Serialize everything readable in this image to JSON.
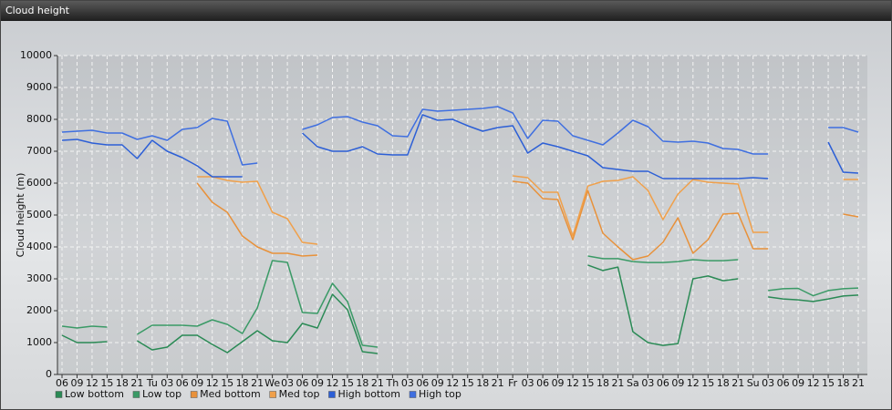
{
  "chart_data": {
    "type": "line",
    "title": "Cloud height",
    "y_label": "Cloud height (m)",
    "categories": [
      "06",
      "09",
      "12",
      "15",
      "18",
      "21",
      "Tu",
      "03",
      "06",
      "09",
      "12",
      "15",
      "18",
      "21",
      "We",
      "03",
      "06",
      "09",
      "12",
      "15",
      "18",
      "21",
      "Th",
      "03",
      "06",
      "09",
      "12",
      "15",
      "18",
      "21",
      "Fr",
      "03",
      "06",
      "09",
      "12",
      "15",
      "18",
      "21",
      "Sa",
      "03",
      "06",
      "09",
      "12",
      "15",
      "18",
      "21",
      "Su",
      "03",
      "06",
      "09",
      "12",
      "15",
      "18",
      "21"
    ],
    "ylim": [
      0,
      10000
    ],
    "yticks": [
      0,
      1000,
      2000,
      3000,
      4000,
      5000,
      6000,
      7000,
      8000,
      9000,
      10000
    ],
    "grid": true,
    "series": [
      {
        "name": "Low bottom",
        "color": "#2a8a55",
        "values": [
          1229,
          1000,
          1000,
          1029,
          null,
          1057,
          771,
          857,
          1229,
          1229,
          943,
          686,
          1029,
          1371,
          1057,
          1000,
          1600,
          1457,
          2514,
          2029,
          714,
          657,
          null,
          null,
          null,
          null,
          null,
          null,
          null,
          null,
          null,
          null,
          null,
          null,
          null,
          3430,
          3260,
          3370,
          1340,
          1000,
          910,
          970,
          3000,
          3090,
          2940,
          3000,
          null,
          2430,
          2370,
          2340,
          2290,
          2370,
          2460,
          2490
        ]
      },
      {
        "name": "Low top",
        "color": "#3a9a66",
        "values": [
          1514,
          1457,
          1514,
          1486,
          null,
          1257,
          1543,
          1543,
          1543,
          1514,
          1714,
          1571,
          1286,
          2086,
          3571,
          3514,
          1943,
          1914,
          2857,
          2286,
          914,
          857,
          null,
          null,
          null,
          null,
          null,
          null,
          null,
          null,
          null,
          null,
          null,
          null,
          null,
          3714,
          3630,
          3630,
          3540,
          3510,
          3510,
          3540,
          3600,
          3570,
          3570,
          3600,
          null,
          2630,
          2690,
          2700,
          2470,
          2630,
          2690,
          2710
        ]
      },
      {
        "name": "Med bottom",
        "color": "#e8913a",
        "values": [
          null,
          null,
          null,
          null,
          null,
          null,
          null,
          null,
          null,
          6000,
          5400,
          5086,
          4343,
          4000,
          3800,
          3800,
          3714,
          3743,
          null,
          null,
          null,
          null,
          null,
          null,
          null,
          null,
          null,
          null,
          null,
          null,
          6057,
          6000,
          5514,
          5486,
          4229,
          5770,
          4429,
          4000,
          3600,
          3714,
          4143,
          4914,
          3800,
          4229,
          5029,
          5057,
          3943,
          3943,
          null,
          null,
          null,
          null,
          5029,
          4943
        ]
      },
      {
        "name": "Med top",
        "color": "#f0a04a",
        "values": [
          null,
          null,
          null,
          null,
          null,
          null,
          null,
          null,
          null,
          6200,
          6200,
          6086,
          6029,
          6057,
          5086,
          4886,
          4143,
          4086,
          null,
          null,
          null,
          null,
          null,
          null,
          null,
          null,
          null,
          null,
          null,
          null,
          6229,
          6171,
          5714,
          5714,
          4343,
          5910,
          6057,
          6086,
          6200,
          5771,
          4857,
          5657,
          6114,
          6029,
          6000,
          5971,
          4457,
          4457,
          null,
          null,
          null,
          null,
          6114,
          6114
        ]
      },
      {
        "name": "High bottom",
        "color": "#2c5fd6",
        "values": [
          7343,
          7371,
          7257,
          7200,
          7200,
          6771,
          7343,
          7000,
          6800,
          6543,
          6200,
          6200,
          6200,
          null,
          null,
          null,
          7571,
          7143,
          7000,
          7000,
          7143,
          6914,
          6886,
          6886,
          8143,
          7971,
          8000,
          7800,
          7629,
          7743,
          7800,
          6943,
          7257,
          7143,
          7000,
          6857,
          6486,
          6429,
          6371,
          6371,
          6143,
          6143,
          6143,
          6143,
          6143,
          6143,
          6171,
          6143,
          null,
          null,
          null,
          7286,
          6343,
          6314
        ]
      },
      {
        "name": "High top",
        "color": "#3f6fe0",
        "values": [
          7600,
          7629,
          7657,
          7571,
          7571,
          7371,
          7486,
          7343,
          7686,
          7743,
          8029,
          7943,
          6571,
          6629,
          null,
          null,
          7686,
          7829,
          8057,
          8086,
          7914,
          7800,
          7486,
          7457,
          8314,
          8257,
          8286,
          8314,
          8343,
          8400,
          8200,
          7400,
          7971,
          7943,
          7486,
          7343,
          7200,
          7571,
          7971,
          7771,
          7314,
          7286,
          7314,
          7257,
          7086,
          7057,
          6914,
          6914,
          null,
          null,
          null,
          7743,
          7743,
          7600
        ]
      }
    ]
  }
}
